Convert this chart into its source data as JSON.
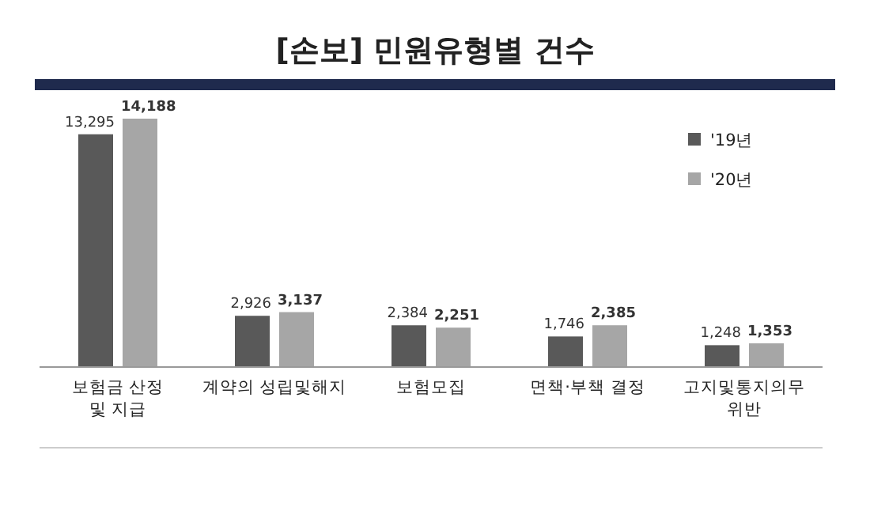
{
  "chart_data": {
    "type": "bar",
    "title": "[손보] 민원유형별 건수",
    "categories": [
      "보험금 산정\n및 지급",
      "계약의 성립및해지",
      "보험모집",
      "면책·부책 결정",
      "고지및통지의무\n위반"
    ],
    "series": [
      {
        "name": "'19년",
        "color": "#595959",
        "values": [
          13295,
          2926,
          2384,
          1746,
          1248
        ],
        "value_labels": [
          "13,295",
          "2,926",
          "2,384",
          "1,746",
          "1,248"
        ]
      },
      {
        "name": "'20년",
        "color": "#a6a6a6",
        "values": [
          14188,
          3137,
          2251,
          2385,
          1353
        ],
        "value_labels": [
          "14,188",
          "3,137",
          "2,251",
          "2,385",
          "1,353"
        ]
      }
    ],
    "legend": "top right"
  }
}
